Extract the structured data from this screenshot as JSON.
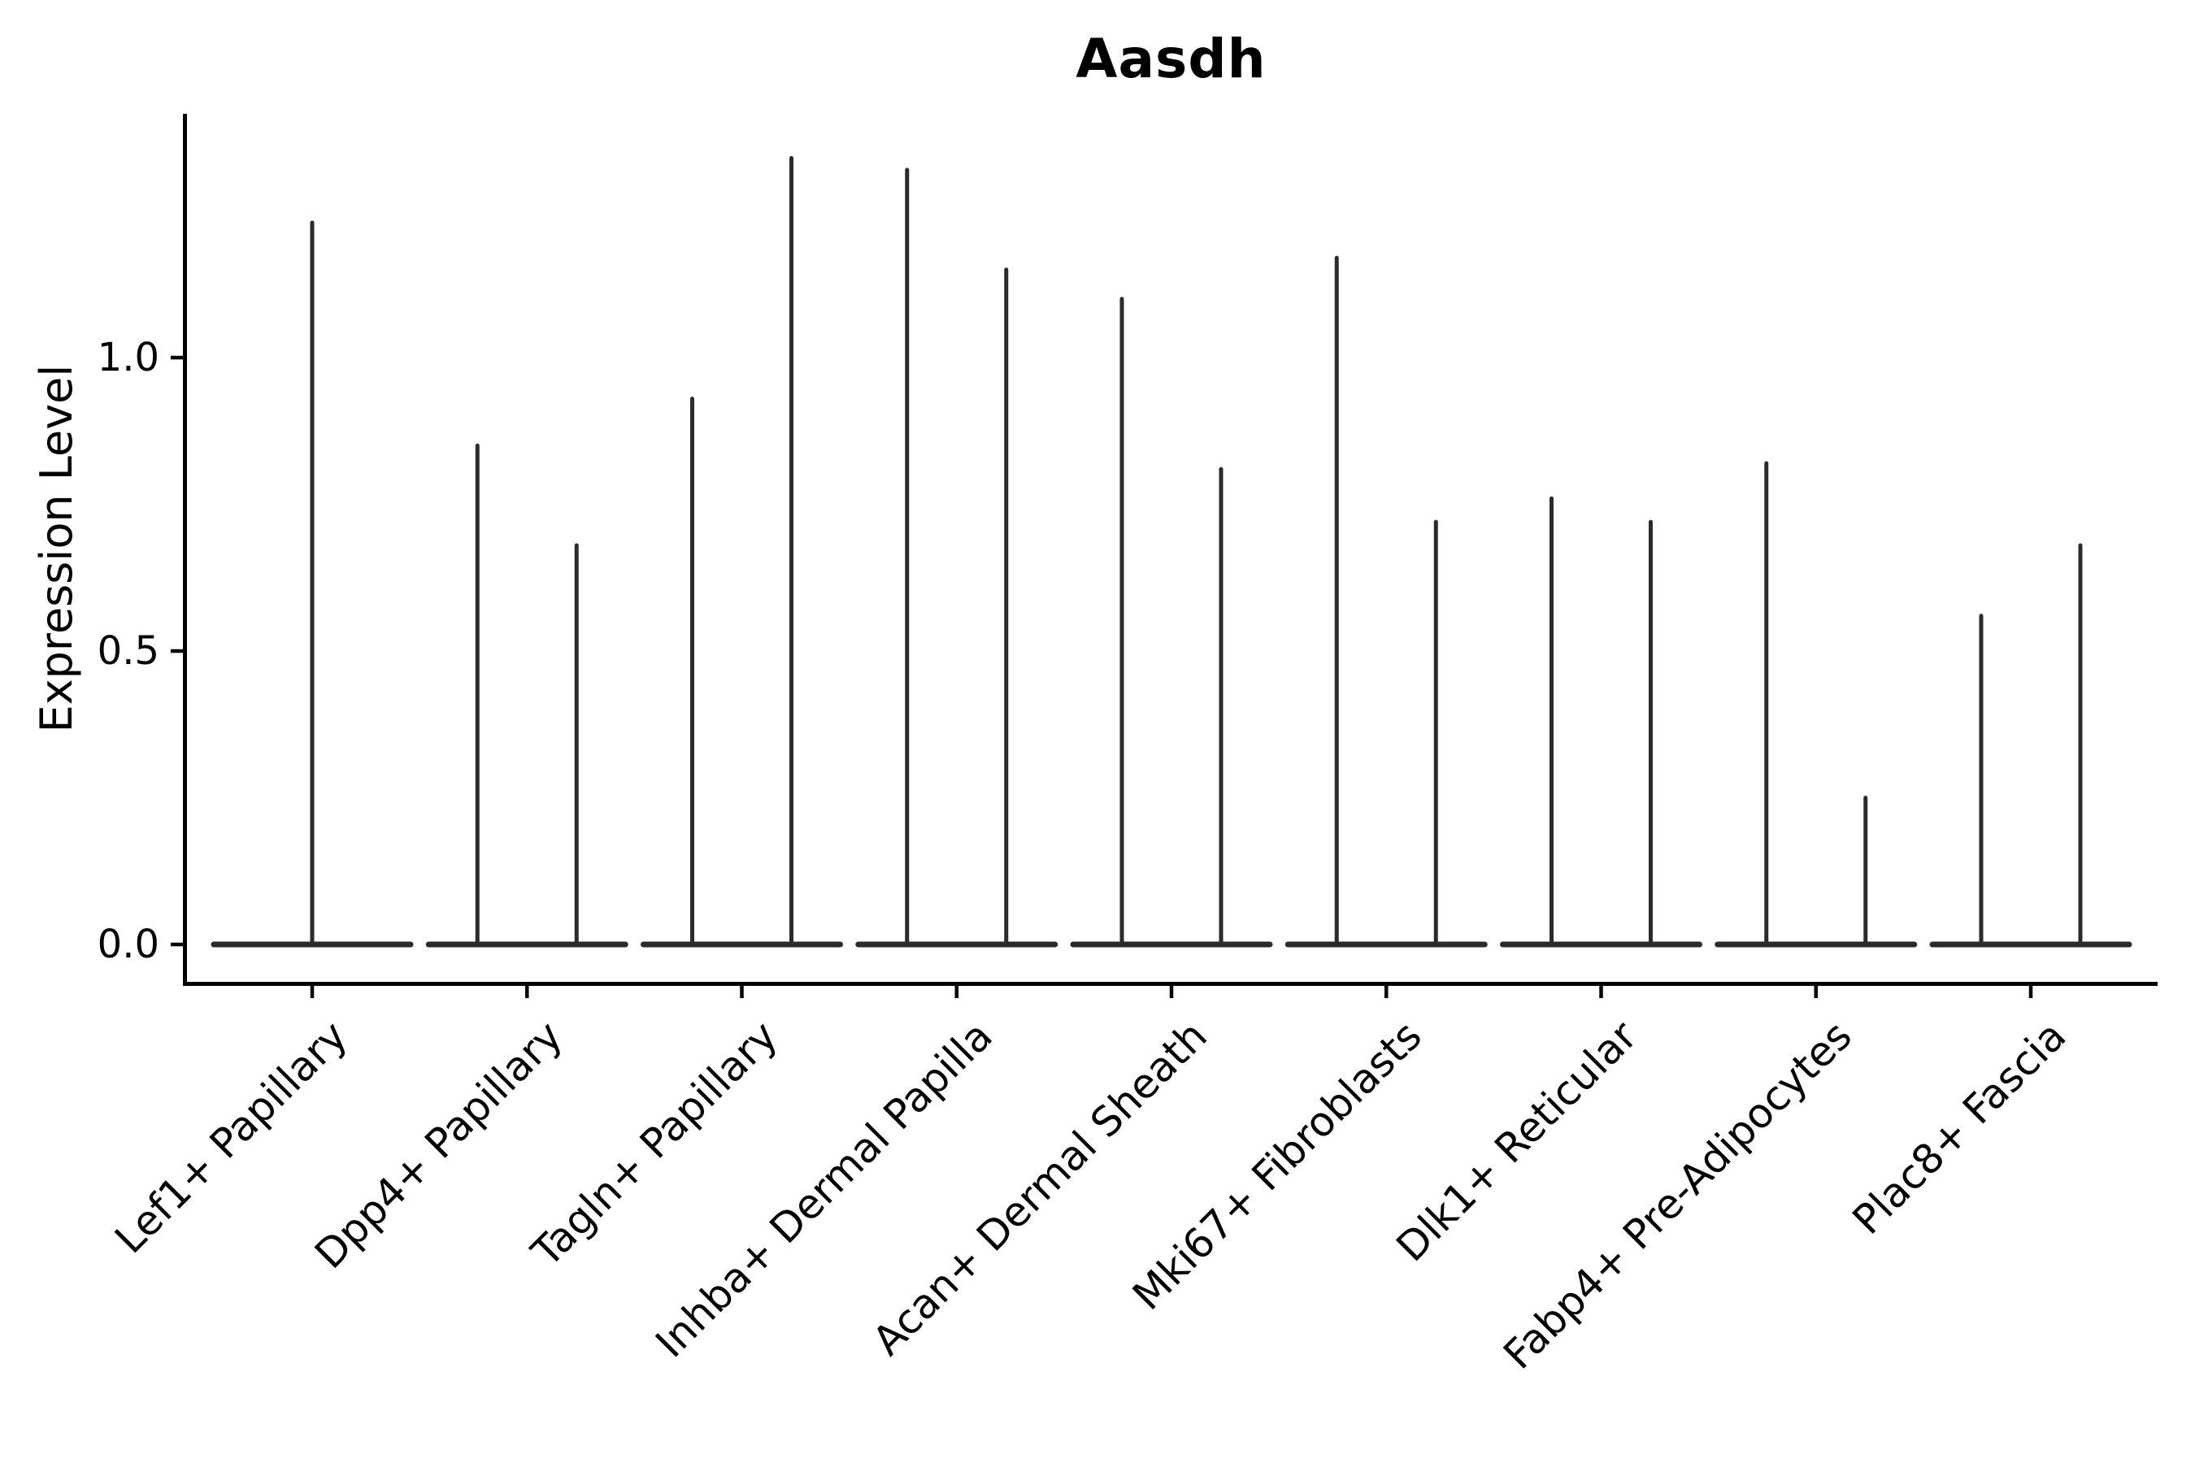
{
  "title": "Aasdh",
  "axis": {
    "ylabel": "Expression Level",
    "ytick_labels": [
      "1.0",
      "0.5",
      "0.0"
    ]
  },
  "colors": {
    "violin_line": "#2b2b2b",
    "spine": "#000000",
    "text": "#000000",
    "background": "#ffffff"
  },
  "chart_data": {
    "type": "violin",
    "title": "Aasdh",
    "xlabel": "",
    "ylabel": "Expression Level",
    "ylim": [
      -0.07,
      1.41
    ],
    "yticks": [
      0.0,
      0.5,
      1.0
    ],
    "grid": false,
    "legend": "none",
    "description": "Violin plot of gene expression; each violin is flattened at 0 (most cells zero) with a thin vertical spike up to the maximum expression value. Categories 2-9 contain two violins side by side; category 1 contains a single violin.",
    "categories": [
      "Lef1+ Papillary",
      "Dpp4+ Papillary",
      "Tagln+ Papillary",
      "Inhba+ Dermal Papilla",
      "Acan+ Dermal Sheath",
      "Mki67+ Fibroblasts",
      "Dlk1+ Reticular",
      "Fabp4+ Pre-Adipocytes",
      "Plac8+ Fascia"
    ],
    "violins": [
      {
        "category": "Lef1+ Papillary",
        "baseline_value": 0.0,
        "max_values": [
          1.23
        ]
      },
      {
        "category": "Dpp4+ Papillary",
        "baseline_value": 0.0,
        "max_values": [
          0.85,
          0.68
        ]
      },
      {
        "category": "Tagln+ Papillary",
        "baseline_value": 0.0,
        "max_values": [
          0.93,
          1.34
        ]
      },
      {
        "category": "Inhba+ Dermal Papilla",
        "baseline_value": 0.0,
        "max_values": [
          1.32,
          1.15
        ]
      },
      {
        "category": "Acan+ Dermal Sheath",
        "baseline_value": 0.0,
        "max_values": [
          1.1,
          0.81
        ]
      },
      {
        "category": "Mki67+ Fibroblasts",
        "baseline_value": 0.0,
        "max_values": [
          1.17,
          0.72
        ]
      },
      {
        "category": "Dlk1+ Reticular",
        "baseline_value": 0.0,
        "max_values": [
          0.76,
          0.72
        ]
      },
      {
        "category": "Fabp4+ Pre-Adipocytes",
        "baseline_value": 0.0,
        "max_values": [
          0.82,
          0.25
        ]
      },
      {
        "category": "Plac8+ Fascia",
        "baseline_value": 0.0,
        "max_values": [
          0.56,
          0.68
        ]
      }
    ]
  }
}
